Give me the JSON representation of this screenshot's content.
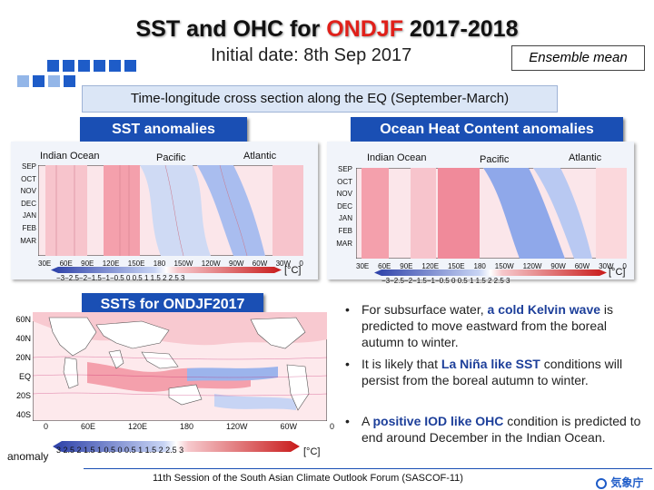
{
  "title": {
    "prefix": "SST and OHC for ",
    "highlight": "ONDJF",
    "suffix": " 2017-2018"
  },
  "subtitle": "Initial date: 8th Sep 2017",
  "ensemble_label": "Ensemble mean",
  "section_title": "Time-longitude cross section along the EQ (September-March)",
  "sst_panel": {
    "header": "SST anomalies",
    "basins": [
      "Indian Ocean",
      "Pacific",
      "Atlantic"
    ],
    "months": [
      "SEP",
      "OCT",
      "NOV",
      "DEC",
      "JAN",
      "FEB",
      "MAR"
    ],
    "lon_labels": [
      "30E",
      "60E",
      "90E",
      "120E",
      "150E",
      "180",
      "150W",
      "120W",
      "90W",
      "60W",
      "30W",
      "0"
    ],
    "scale_labels": "−3−2.5−2−1.5−1−0.5 0 0.5 1 1.5 2 2.5 3",
    "unit": "[°C]"
  },
  "ohc_panel": {
    "header": "Ocean Heat Content anomalies",
    "basins": [
      "Indian Ocean",
      "Pacific",
      "Atlantic"
    ],
    "months": [
      "SEP",
      "OCT",
      "NOV",
      "DEC",
      "JAN",
      "FEB",
      "MAR"
    ],
    "lon_labels": [
      "30E",
      "60E",
      "90E",
      "120E",
      "150E",
      "180",
      "150W",
      "120W",
      "90W",
      "60W",
      "30W",
      "0"
    ],
    "scale_labels": "−3−2.5−2−1.5−1−0.5 0 0.5 1 1.5 2 2.5 3",
    "unit": "[°C]"
  },
  "map_panel": {
    "header": "SSTs for ONDJF2017",
    "lat_labels": [
      "60N",
      "40N",
      "20N",
      "EQ",
      "20S",
      "40S"
    ],
    "lon_labels": [
      "0",
      "60E",
      "120E",
      "180",
      "120W",
      "60W",
      "0"
    ],
    "scale_labels": "3 2.5 2 1.5 1 0.5 0 0.5 1 1.5 2 2.5 3",
    "anomaly_label": "anomaly",
    "unit": "[°C]"
  },
  "bullets": [
    {
      "pre": "For subsurface water, ",
      "em": "a cold Kelvin wave",
      "post": " is predicted to move eastward from the boreal autumn to winter."
    },
    {
      "pre": "It is likely that ",
      "em": "La Niña like SST",
      "post": " conditions will persist from the boreal autumn to winter."
    },
    {
      "pre": "A ",
      "em": "positive IOD like OHC",
      "post": " condition is predicted to end around December in the Indian Ocean."
    }
  ],
  "footer": "11th Session of the South Asian Climate Outlook Forum (SASCOF-11)",
  "logo_text": "気象庁",
  "colors": {
    "accent_blue": "#1a4fb4",
    "highlight_red": "#e0201a",
    "warm": "#f4a0a8",
    "cool": "#8aa8e8"
  }
}
